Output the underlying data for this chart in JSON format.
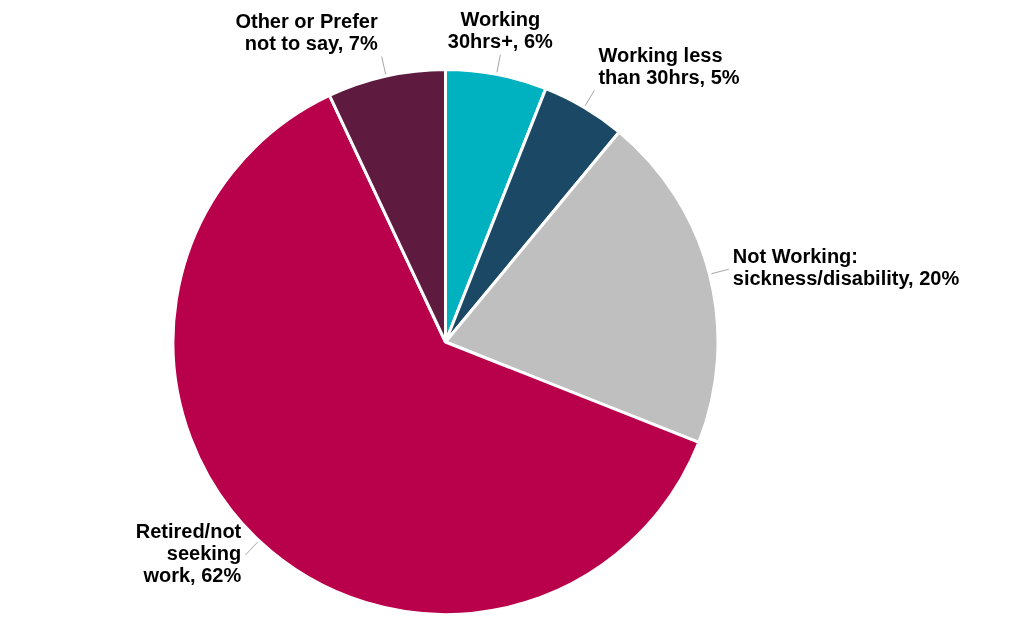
{
  "chart_data": {
    "type": "pie",
    "categories": [
      "Working 30hrs+",
      "Working less than 30hrs",
      "Not Working: sickness/disability",
      "Retired/not seeking work",
      "Other or Prefer not to say"
    ],
    "values": [
      6,
      5,
      20,
      62,
      7
    ],
    "colors": [
      "#00b2bf",
      "#1b4965",
      "#bfbfbf",
      "#b9004b",
      "#5f1a40"
    ],
    "value_labels": [
      "6%",
      "5%",
      "20%",
      "62%",
      "7%"
    ],
    "legend": false
  }
}
